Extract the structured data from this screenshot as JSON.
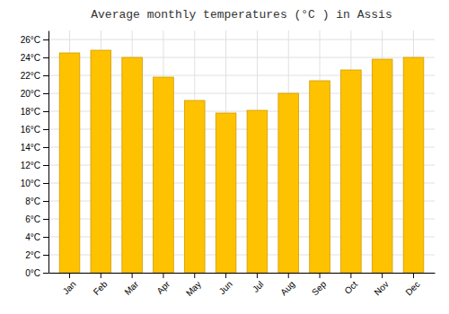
{
  "chart_data": {
    "type": "bar",
    "title": "Average monthly temperatures (°C ) in Assis",
    "categories": [
      "Jan",
      "Feb",
      "Mar",
      "Apr",
      "May",
      "Jun",
      "Jul",
      "Aug",
      "Sep",
      "Oct",
      "Nov",
      "Dec"
    ],
    "values": [
      24.5,
      24.8,
      24.0,
      21.8,
      19.2,
      17.8,
      18.1,
      20.0,
      21.4,
      22.6,
      23.8,
      24.0
    ],
    "color": "#FFC200",
    "ylim": [
      0,
      27
    ],
    "yticks": [
      {
        "value": 0,
        "label": "0°C"
      },
      {
        "value": 2,
        "label": "2°C"
      },
      {
        "value": 4,
        "label": "4°C"
      },
      {
        "value": 6,
        "label": "6°C"
      },
      {
        "value": 8,
        "label": "8°C"
      },
      {
        "value": 10,
        "label": "10°C"
      },
      {
        "value": 12,
        "label": "12°C"
      },
      {
        "value": 14,
        "label": "14°C"
      },
      {
        "value": 16,
        "label": "16°C"
      },
      {
        "value": 18,
        "label": "18°C"
      },
      {
        "value": 20,
        "label": "20°C"
      },
      {
        "value": 22,
        "label": "22°C"
      },
      {
        "value": 24,
        "label": "24°C"
      },
      {
        "value": 26,
        "label": "26°C"
      }
    ],
    "grid": true
  }
}
